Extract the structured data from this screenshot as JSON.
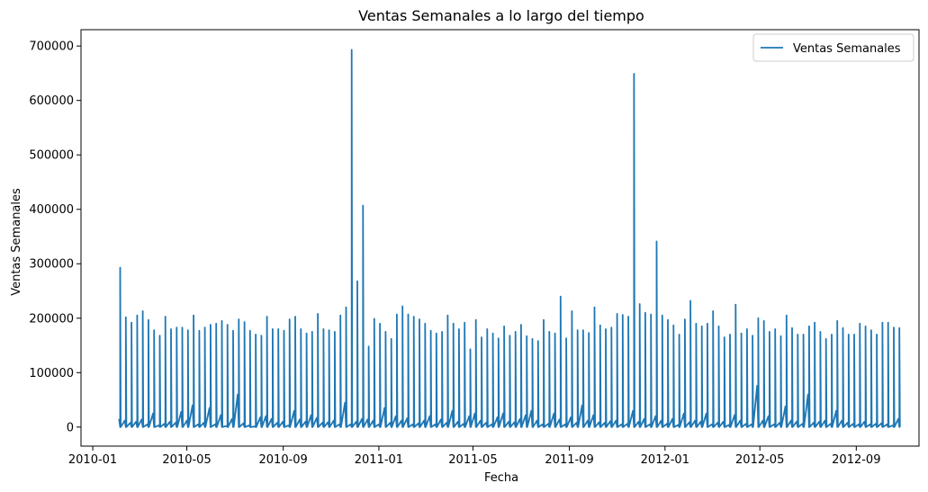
{
  "chart_data": {
    "type": "line",
    "title": "Ventas Semanales a lo largo del tiempo",
    "xlabel": "Fecha",
    "ylabel": "Ventas Semanales",
    "xlim": [
      "2009-12-17",
      "2012-11-20"
    ],
    "ylim": [
      -35000,
      730000
    ],
    "x_ticks": [
      "2010-01",
      "2010-05",
      "2010-09",
      "2011-01",
      "2011-05",
      "2011-09",
      "2012-01",
      "2012-05",
      "2012-09"
    ],
    "y_ticks": [
      0,
      100000,
      200000,
      300000,
      400000,
      500000,
      600000,
      700000
    ],
    "legend": {
      "position": "top-right",
      "entries": [
        "Ventas Semanales"
      ]
    },
    "grid": false,
    "colors": {
      "series": "#1f77b4",
      "axes": "#000000",
      "legend_border": "#cccccc"
    },
    "series": [
      {
        "name": "Ventas Semanales",
        "start_date": "2010-02-05",
        "end_date": "2012-10-26",
        "peaks": [
          293000,
          202000,
          192000,
          205000,
          213000,
          197000,
          178000,
          168000,
          203000,
          180000,
          183000,
          183000,
          178000,
          205000,
          177000,
          183000,
          188000,
          190000,
          195000,
          188000,
          177000,
          198000,
          193000,
          177000,
          170000,
          168000,
          203000,
          180000,
          180000,
          177000,
          198000,
          203000,
          180000,
          172000,
          175000,
          208000,
          180000,
          178000,
          175000,
          205000,
          220000,
          222000,
          268000,
          407000,
          148000,
          199000,
          190000,
          175000,
          162000,
          207000,
          222000,
          207000,
          203000,
          198000,
          190000,
          177000,
          172000,
          175000,
          205000,
          190000,
          180000,
          192000,
          143000,
          197000,
          165000,
          180000,
          172000,
          163000,
          185000,
          168000,
          175000,
          188000,
          167000,
          162000,
          158000,
          197000,
          175000,
          172000,
          240000,
          163000,
          213000,
          178000,
          178000,
          173000,
          220000,
          187000,
          180000,
          183000,
          208000,
          206000,
          203000,
          172000,
          226000,
          210000,
          207000,
          157000,
          205000,
          197000,
          187000,
          170000,
          198000,
          232000,
          190000,
          185000,
          190000,
          213000,
          185000,
          165000,
          170000,
          225000,
          172000,
          180000,
          168000,
          200000,
          195000,
          175000,
          180000,
          167000,
          205000,
          182000,
          170000,
          170000,
          185000,
          192000,
          175000,
          162000,
          170000,
          195000,
          182000,
          170000,
          170000,
          190000,
          185000,
          178000,
          170000,
          192000,
          192000,
          183000,
          182000
        ],
        "mid_levels": [
          15000,
          12000,
          8000,
          10000,
          14000,
          5000,
          25000,
          3000,
          6000,
          10000,
          8000,
          28000,
          12000,
          40000,
          5000,
          8000,
          35000,
          5000,
          22000,
          2000,
          15000,
          60000,
          7000,
          3000,
          1000,
          18000,
          20000,
          15000,
          8000,
          10000,
          3000,
          30000,
          14000,
          10000,
          22000,
          17000,
          8000,
          9000,
          12000,
          5000,
          45000,
          5000,
          10000,
          15000,
          14000,
          12000,
          5000,
          35000,
          8000,
          20000,
          12000,
          16000,
          5000,
          7000,
          12000,
          20000,
          5000,
          14000,
          8000,
          30000,
          10000,
          6000,
          20000,
          25000,
          12000,
          8000,
          5000,
          18000,
          25000,
          10000,
          9000,
          15000,
          22000,
          30000,
          12000,
          5000,
          6000,
          25000,
          14000,
          5000,
          18000,
          8000,
          40000,
          12000,
          22000,
          9000,
          8000,
          11000,
          12000,
          5000,
          6000,
          30000,
          10000,
          15000,
          5000,
          20000,
          12000,
          6000,
          15000,
          4000,
          25000,
          9000,
          12000,
          10000,
          25000,
          5000,
          8000,
          10000,
          4000,
          22000,
          12000,
          6000,
          5000,
          76000,
          12000,
          20000,
          5000,
          8000,
          38000,
          12000,
          10000,
          6000,
          60000,
          8000,
          10000,
          12000,
          6000,
          30000,
          12000,
          8000,
          6000,
          5000,
          10000,
          5000,
          6000,
          7000,
          5000,
          3000
        ],
        "special_spikes": [
          {
            "date": "2010-11-26",
            "value": 693000
          },
          {
            "date": "2011-11-25",
            "value": 649000
          },
          {
            "date": "2011-12-23",
            "value": 341000
          }
        ]
      }
    ]
  }
}
